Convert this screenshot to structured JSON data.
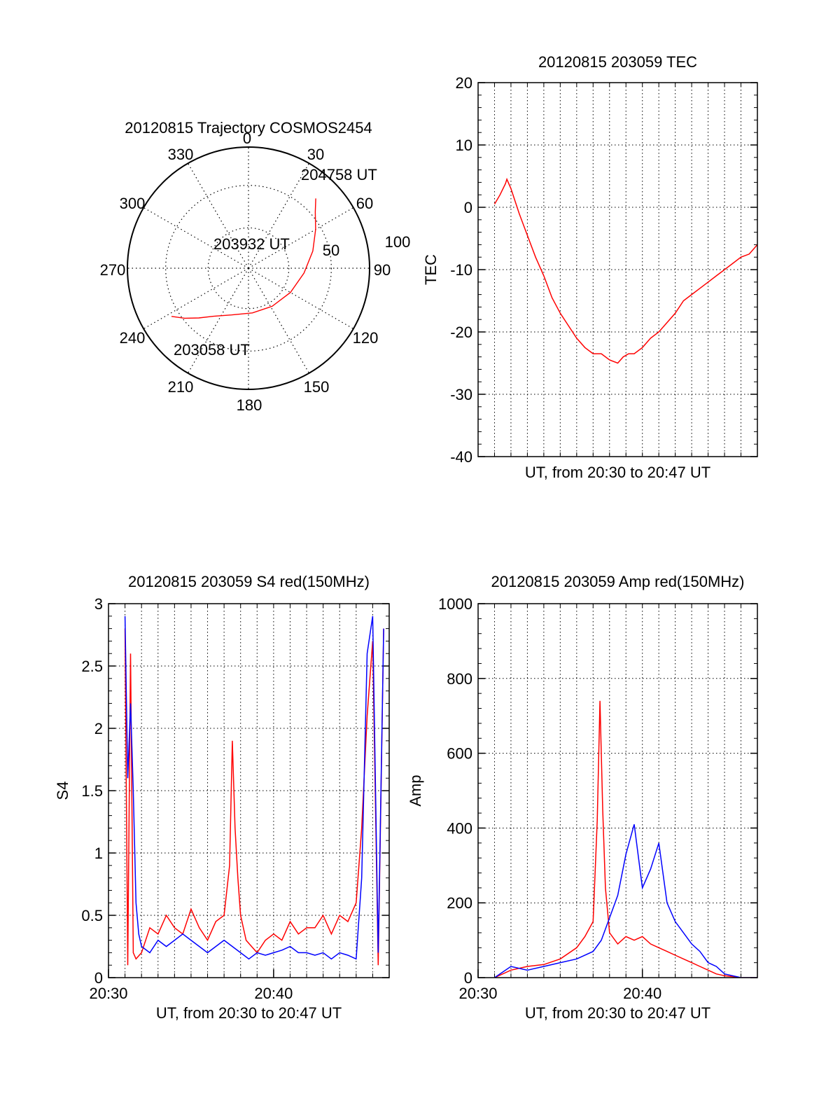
{
  "chart_data": [
    {
      "type": "polar",
      "title": "20120815 Trajectory COSMOS2454",
      "angle_labels": [
        "0",
        "30",
        "60",
        "90",
        "120",
        "150",
        "180",
        "210",
        "240",
        "270",
        "300",
        "330"
      ],
      "radial_labels": [
        "50",
        "100"
      ],
      "radial_range": [
        0,
        100
      ],
      "grid": true,
      "series": [
        {
          "color": "#ff0000",
          "points": [
            {
              "az": 238,
              "el": 75
            },
            {
              "az": 232,
              "el": 67
            },
            {
              "az": 225,
              "el": 58
            },
            {
              "az": 216,
              "el": 49
            },
            {
              "az": 200,
              "el": 41
            },
            {
              "az": 175,
              "el": 37
            },
            {
              "az": 148,
              "el": 37
            },
            {
              "az": 120,
              "el": 40
            },
            {
              "az": 95,
              "el": 46
            },
            {
              "az": 75,
              "el": 55
            },
            {
              "az": 60,
              "el": 64
            },
            {
              "az": 50,
              "el": 72
            },
            {
              "az": 44,
              "el": 80
            }
          ]
        }
      ],
      "annotations": [
        {
          "text": "204758 UT"
        },
        {
          "text": "203932 UT"
        },
        {
          "text": "203058 UT"
        }
      ]
    },
    {
      "type": "line",
      "title": "20120815 203059 TEC",
      "xlabel": "UT, from 20:30 to 20:47 UT",
      "ylabel": "TEC",
      "xlim": [
        "20:30:00",
        "20:47:00"
      ],
      "ylim": [
        -40,
        20
      ],
      "yticks": [
        "20",
        "10",
        "0",
        "-10",
        "-20",
        "-30",
        "-40"
      ],
      "grid": true,
      "series": [
        {
          "color": "#ff0000",
          "x": [
            "20:31:00",
            "20:31:20",
            "20:31:40",
            "20:31:45",
            "20:32:00",
            "20:32:30",
            "20:33:00",
            "20:33:30",
            "20:34:00",
            "20:34:30",
            "20:35:00",
            "20:35:30",
            "20:36:00",
            "20:36:30",
            "20:37:00",
            "20:37:30",
            "20:38:00",
            "20:38:30",
            "20:38:50",
            "20:39:10",
            "20:39:30",
            "20:40:00",
            "20:40:30",
            "20:41:00",
            "20:41:30",
            "20:42:00",
            "20:42:30",
            "20:43:00",
            "20:43:30",
            "20:44:00",
            "20:44:30",
            "20:45:00",
            "20:45:30",
            "20:46:00",
            "20:46:30",
            "20:47:00"
          ],
          "values": [
            0.5,
            2,
            3.8,
            4.5,
            3,
            -1,
            -4.5,
            -8,
            -11,
            -14.5,
            -17,
            -19,
            -21,
            -22.5,
            -23.5,
            -23.5,
            -24.5,
            -25,
            -24,
            -23.5,
            -23.5,
            -22.5,
            -21,
            -20,
            -18.5,
            -17,
            -15,
            -14,
            -13,
            -12,
            -11,
            -10,
            -9,
            -8,
            -7.5,
            -6
          ]
        }
      ]
    },
    {
      "type": "line",
      "title": "20120815 203059 S4 red(150MHz)",
      "xlabel": "UT, from 20:30 to 20:47 UT",
      "ylabel": "S4",
      "xlim": [
        "20:30",
        "20:47"
      ],
      "ylim": [
        0,
        3
      ],
      "yticks": [
        "3",
        "2.5",
        "2",
        "1.5",
        "1",
        "0.5",
        "0"
      ],
      "xticks": [
        "20:30",
        "20:40"
      ],
      "grid": true,
      "series": [
        {
          "color": "#ff0000",
          "x": [
            "20:31:00",
            "20:31:10",
            "20:31:20",
            "20:31:30",
            "20:31:40",
            "20:32:00",
            "20:32:30",
            "20:33:00",
            "20:33:30",
            "20:34:00",
            "20:34:30",
            "20:35:00",
            "20:35:30",
            "20:36:00",
            "20:36:30",
            "20:37:00",
            "20:37:20",
            "20:37:30",
            "20:37:40",
            "20:37:50",
            "20:38:00",
            "20:38:20",
            "20:38:40",
            "20:39:00",
            "20:39:30",
            "20:40:00",
            "20:40:30",
            "20:41:00",
            "20:41:30",
            "20:42:00",
            "20:42:30",
            "20:43:00",
            "20:43:30",
            "20:44:00",
            "20:44:30",
            "20:45:00",
            "20:45:20",
            "20:45:40",
            "20:46:00",
            "20:46:20",
            "20:46:40"
          ],
          "values": [
            2.8,
            0.1,
            2.6,
            0.2,
            0.15,
            0.2,
            0.4,
            0.35,
            0.5,
            0.4,
            0.35,
            0.55,
            0.4,
            0.3,
            0.45,
            0.5,
            0.9,
            1.9,
            1.2,
            0.8,
            0.5,
            0.3,
            0.25,
            0.2,
            0.3,
            0.35,
            0.3,
            0.45,
            0.35,
            0.4,
            0.4,
            0.5,
            0.35,
            0.5,
            0.45,
            0.6,
            1.2,
            2.1,
            2.7,
            0.1,
            2.8
          ]
        },
        {
          "color": "#0000ff",
          "x": [
            "20:31:00",
            "20:31:10",
            "20:31:20",
            "20:31:30",
            "20:31:40",
            "20:31:50",
            "20:32:00",
            "20:32:30",
            "20:33:00",
            "20:33:30",
            "20:34:00",
            "20:34:30",
            "20:35:00",
            "20:35:30",
            "20:36:00",
            "20:36:30",
            "20:37:00",
            "20:37:30",
            "20:38:00",
            "20:38:30",
            "20:39:00",
            "20:39:30",
            "20:40:00",
            "20:40:30",
            "20:41:00",
            "20:41:30",
            "20:42:00",
            "20:42:30",
            "20:43:00",
            "20:43:30",
            "20:44:00",
            "20:44:30",
            "20:45:00",
            "20:45:20",
            "20:45:40",
            "20:46:00",
            "20:46:20",
            "20:46:40"
          ],
          "values": [
            2.9,
            1.6,
            2.2,
            1.5,
            0.6,
            0.35,
            0.25,
            0.2,
            0.3,
            0.25,
            0.3,
            0.35,
            0.3,
            0.25,
            0.2,
            0.25,
            0.3,
            0.25,
            0.2,
            0.15,
            0.2,
            0.18,
            0.2,
            0.22,
            0.25,
            0.2,
            0.2,
            0.18,
            0.2,
            0.15,
            0.2,
            0.18,
            0.15,
            0.8,
            2.6,
            2.9,
            0.2,
            2.8
          ]
        }
      ]
    },
    {
      "type": "line",
      "title": "20120815 203059 Amp red(150MHz)",
      "xlabel": "UT, from 20:30 to 20:47 UT",
      "ylabel": "Amp",
      "xlim": [
        "20:30",
        "20:47"
      ],
      "ylim": [
        0,
        1000
      ],
      "yticks": [
        "1000",
        "800",
        "600",
        "400",
        "200",
        "0"
      ],
      "xticks": [
        "20:30",
        "20:40"
      ],
      "grid": true,
      "series": [
        {
          "color": "#ff0000",
          "x": [
            "20:31:00",
            "20:32:00",
            "20:33:00",
            "20:34:00",
            "20:35:00",
            "20:36:00",
            "20:36:30",
            "20:37:00",
            "20:37:15",
            "20:37:25",
            "20:37:35",
            "20:37:45",
            "20:38:00",
            "20:38:30",
            "20:39:00",
            "20:39:30",
            "20:40:00",
            "20:40:30",
            "20:41:00",
            "20:41:30",
            "20:42:00",
            "20:42:30",
            "20:43:00",
            "20:43:30",
            "20:44:00",
            "20:44:30",
            "20:45:00",
            "20:46:00",
            "20:47:00"
          ],
          "values": [
            0,
            20,
            30,
            35,
            50,
            80,
            110,
            150,
            420,
            740,
            450,
            240,
            120,
            90,
            110,
            100,
            110,
            90,
            80,
            70,
            60,
            50,
            40,
            30,
            20,
            10,
            5,
            0,
            0
          ]
        },
        {
          "color": "#0000ff",
          "x": [
            "20:31:00",
            "20:32:00",
            "20:33:00",
            "20:34:00",
            "20:35:00",
            "20:36:00",
            "20:37:00",
            "20:37:30",
            "20:38:00",
            "20:38:30",
            "20:39:00",
            "20:39:30",
            "20:40:00",
            "20:40:30",
            "20:41:00",
            "20:41:30",
            "20:42:00",
            "20:42:30",
            "20:43:00",
            "20:43:30",
            "20:44:00",
            "20:44:30",
            "20:45:00",
            "20:46:00",
            "20:47:00"
          ],
          "values": [
            0,
            30,
            20,
            30,
            40,
            50,
            70,
            100,
            160,
            220,
            330,
            410,
            240,
            290,
            360,
            200,
            150,
            120,
            90,
            70,
            40,
            30,
            10,
            0,
            0
          ]
        }
      ]
    }
  ]
}
